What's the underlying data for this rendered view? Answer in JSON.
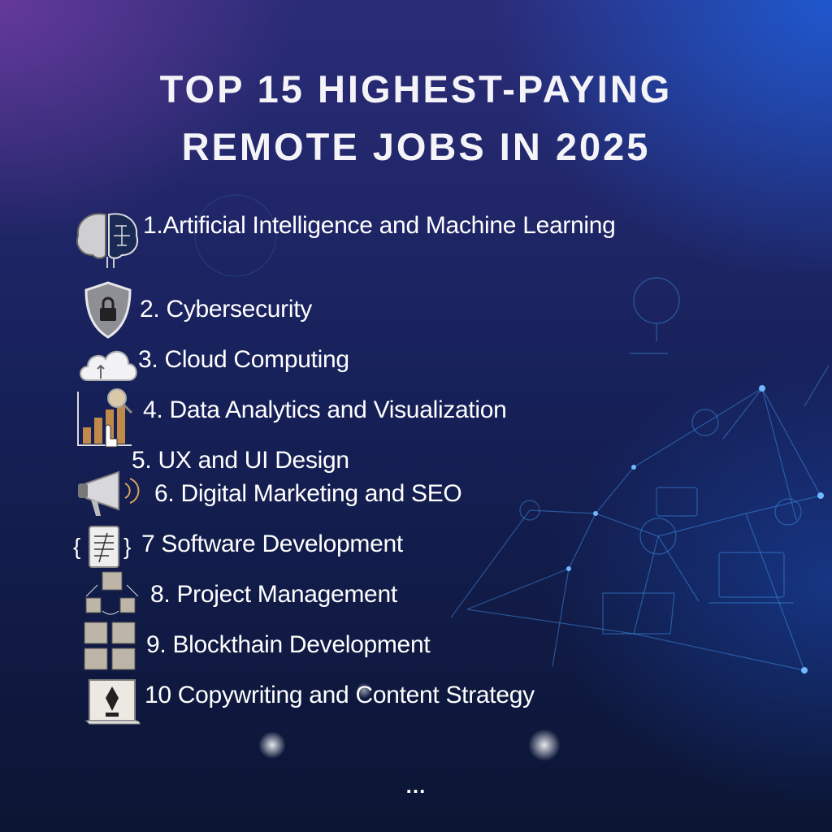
{
  "title": {
    "line1": "TOP 15 HIGHEST-PAYING",
    "line2": "REMOTE JOBS IN 2025"
  },
  "items": [
    {
      "label": "1.Artificial Intelligence and Machine Learning",
      "icon": "brain-icon"
    },
    {
      "label": "2. Cybersecurity",
      "icon": "shield-lock-icon"
    },
    {
      "label": "3. Cloud Computing",
      "icon": "cloud-icon"
    },
    {
      "label": "4. Data Analytics and Visualization",
      "icon": "bar-chart-icon"
    },
    {
      "label": "5. UX and UI Design",
      "icon": ""
    },
    {
      "label": "6. Digital Marketing and SEO",
      "icon": "megaphone-icon"
    },
    {
      "label": "7 Software Development",
      "icon": "code-clipboard-icon"
    },
    {
      "label": "8. Project Management",
      "icon": "boxes-icon"
    },
    {
      "label": "9. Blockthain Development",
      "icon": "blocks-icon"
    },
    {
      "label": "10 Copywriting and Content Strategy",
      "icon": "pen-scroll-icon"
    }
  ],
  "more": "...",
  "colors": {
    "purple": "#6e3ca0",
    "blue": "#1e5ad2",
    "navy": "#0b1533",
    "network": "#3f8fe8"
  }
}
